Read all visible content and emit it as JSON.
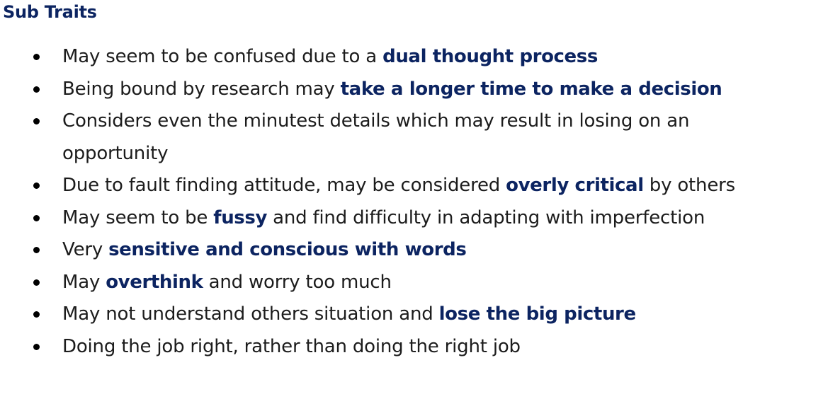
{
  "heading": "Sub Traits",
  "traits": [
    {
      "before": "May seem to be confused due to a ",
      "emph": "dual thought process",
      "after": ""
    },
    {
      "before": "Being bound by research may ",
      "emph": "take a longer time to make a decision",
      "after": ""
    },
    {
      "before": "Considers even the minutest details which may result in losing on an opportunity",
      "emph": "",
      "after": ""
    },
    {
      "before": "Due to fault finding attitude, may be considered ",
      "emph": "overly critical",
      "after": " by others"
    },
    {
      "before": "May seem to be ",
      "emph": "fussy",
      "after": " and find difficulty in adapting with imperfection"
    },
    {
      "before": "Very ",
      "emph": "sensitive and conscious with words",
      "after": ""
    },
    {
      "before": "May ",
      "emph": "overthink",
      "after": " and worry too much"
    },
    {
      "before": "May not understand others situation and ",
      "emph": "lose the big picture",
      "after": ""
    },
    {
      "before": "Doing the job right, rather than doing the right job",
      "emph": "",
      "after": ""
    }
  ]
}
